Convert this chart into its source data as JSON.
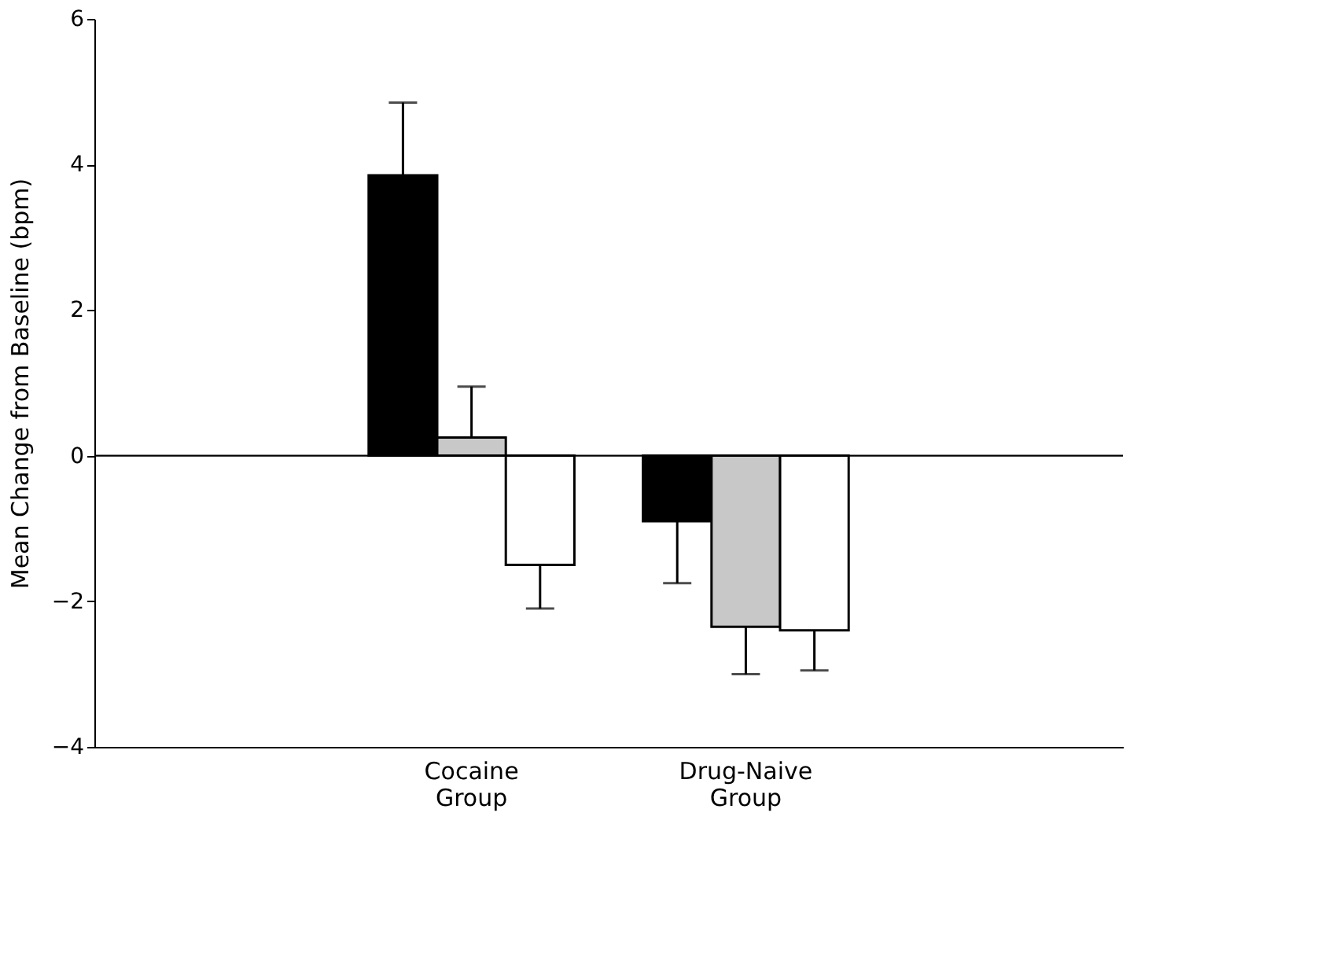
{
  "chart_data": {
    "type": "bar",
    "ylabel": "Mean Change from Baseline (bpm)",
    "categories": [
      "Cocaine Group",
      "Drug-Naive Group"
    ],
    "series": [
      {
        "color": "#000000",
        "values": [
          3.85,
          -0.9
        ],
        "errors": [
          [
            3.85,
            4.85
          ],
          [
            -1.75,
            -0.9
          ]
        ]
      },
      {
        "color": "#c8c8c8",
        "values": [
          0.25,
          -2.35
        ],
        "errors": [
          [
            0.25,
            0.95
          ],
          [
            -3.0,
            -2.35
          ]
        ]
      },
      {
        "color": "#ffffff",
        "values": [
          -1.5,
          -2.4
        ],
        "errors": [
          [
            -2.1,
            -1.5
          ],
          [
            -2.95,
            -2.4
          ]
        ]
      }
    ],
    "ylim": [
      -4,
      6
    ],
    "yticks": [
      -4,
      -2,
      0,
      2,
      4,
      6
    ],
    "grid": false,
    "legend": false,
    "ref_lines": [
      {
        "axis": "y",
        "value": 0,
        "color": "#000000"
      }
    ]
  }
}
